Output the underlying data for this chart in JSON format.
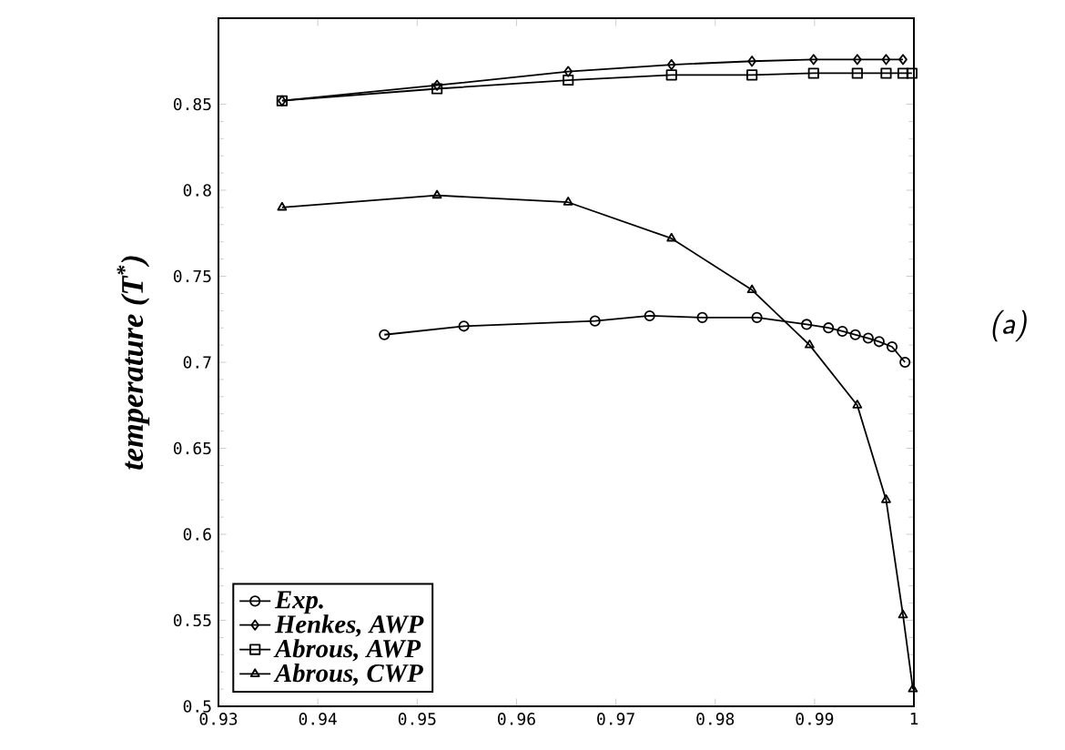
{
  "chart_data": {
    "type": "line",
    "ylabel": "temperature (T$^{*}$)",
    "annotations": [
      "(a)"
    ],
    "xlim": [
      0.93,
      1.0
    ],
    "ylim": [
      0.5,
      0.9
    ],
    "xticks": [
      0.93,
      0.94,
      0.95,
      0.96,
      0.97,
      0.98,
      0.99,
      {
        "value": 1.0,
        "label": "1"
      }
    ],
    "yticks": [
      0.5,
      0.55,
      0.6,
      0.65,
      0.7,
      0.75,
      0.8,
      0.85
    ],
    "grid": false,
    "legend": "bottom left",
    "line_style": "solid",
    "series": [
      {
        "name": "Exp.",
        "color": "#000000",
        "marker": "circle",
        "x": [
          0.9467,
          0.9547,
          0.9679,
          0.9734,
          0.9787,
          0.9842,
          0.9892,
          0.9914,
          0.9928,
          0.9941,
          0.9954,
          0.9965,
          0.9978,
          0.9991
        ],
        "values": [
          0.716,
          0.721,
          0.724,
          0.727,
          0.726,
          0.726,
          0.722,
          0.72,
          0.718,
          0.716,
          0.714,
          0.712,
          0.709,
          0.7
        ]
      },
      {
        "name": "Henkes, AWP",
        "color": "#000000",
        "marker": "diamond",
        "x": [
          0.9364,
          0.952,
          0.9652,
          0.9756,
          0.9837,
          0.9899,
          0.9943,
          0.9972,
          0.9989
        ],
        "values": [
          0.852,
          0.861,
          0.869,
          0.873,
          0.875,
          0.876,
          0.876,
          0.876,
          0.876
        ]
      },
      {
        "name": "Abrous, AWP",
        "color": "#000000",
        "marker": "square",
        "x": [
          0.9364,
          0.952,
          0.9652,
          0.9756,
          0.9837,
          0.9899,
          0.9943,
          0.9972,
          0.9989,
          0.9998
        ],
        "values": [
          0.852,
          0.859,
          0.864,
          0.867,
          0.867,
          0.868,
          0.868,
          0.868,
          0.868,
          0.868
        ]
      },
      {
        "name": "Abrous, CWP",
        "color": "#000000",
        "marker": "triangle",
        "x": [
          0.9364,
          0.952,
          0.9652,
          0.9756,
          0.9837,
          0.9895,
          0.9943,
          0.9972,
          0.9989,
          0.9999
        ],
        "values": [
          0.79,
          0.797,
          0.793,
          0.772,
          0.742,
          0.71,
          0.675,
          0.62,
          0.553,
          0.51
        ]
      }
    ]
  }
}
